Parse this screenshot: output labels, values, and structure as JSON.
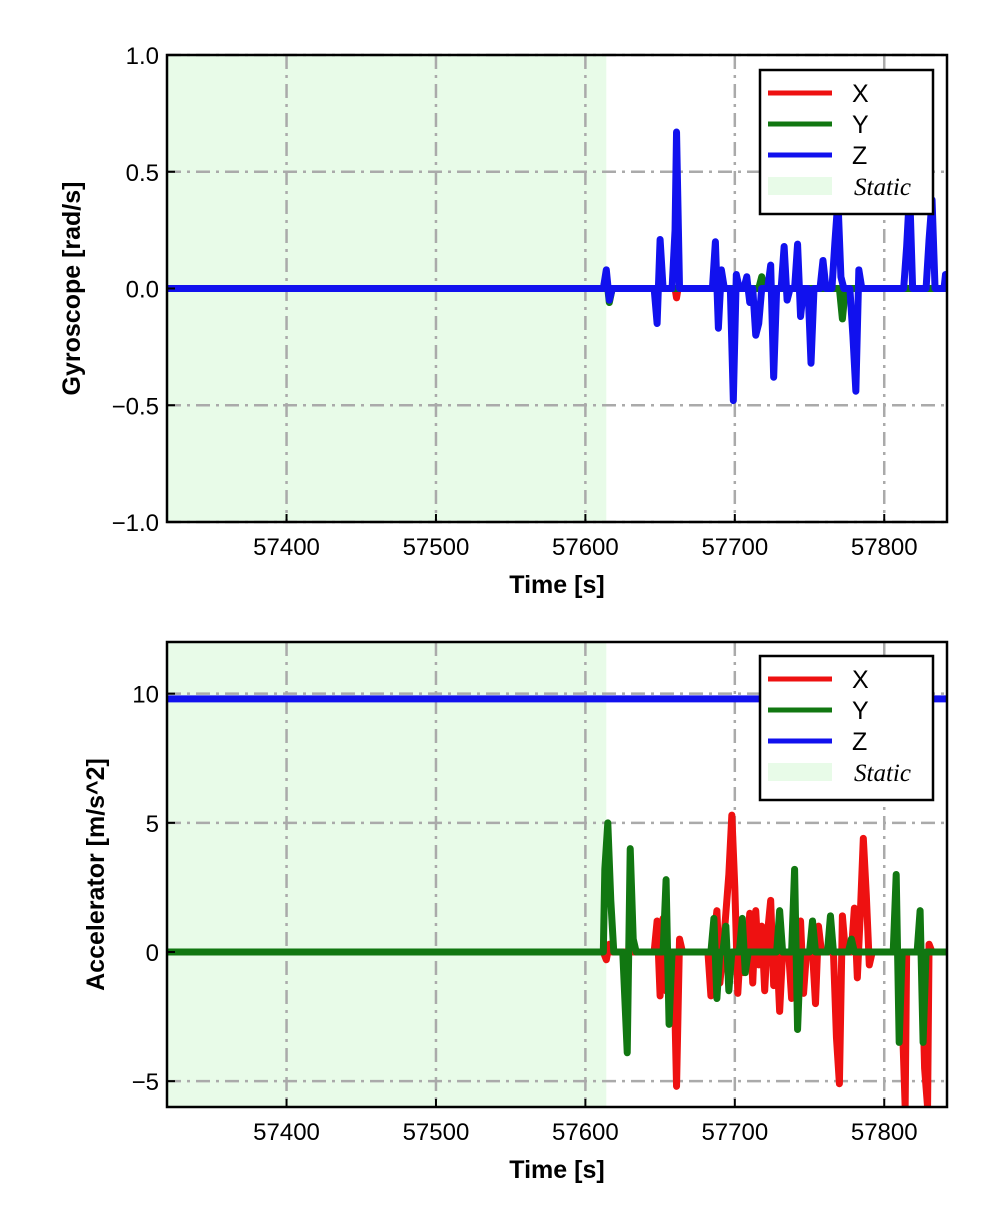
{
  "chart_data": [
    {
      "type": "line",
      "xlabel": "Time [s]",
      "ylabel": "Gyroscope [rad/s]",
      "xlim": [
        57320,
        57842
      ],
      "ylim": [
        -1.0,
        1.0
      ],
      "x_ticks": [
        57400,
        57500,
        57600,
        57700,
        57800
      ],
      "x_tick_labels": [
        "57400",
        "57500",
        "57600",
        "57700",
        "57800"
      ],
      "y_ticks": [
        -1.0,
        -0.5,
        0.0,
        0.5,
        1.0
      ],
      "y_tick_labels": [
        "−1.0",
        "−0.5",
        "0.0",
        "0.5",
        "1.0"
      ],
      "grid": true,
      "legend_position": "top-right",
      "static_region": {
        "label": "Static",
        "x_start": 57320,
        "x_end": 57614,
        "color": "#e8fbe8"
      },
      "series": [
        {
          "name": "X",
          "color": "#ee1111",
          "points": [
            [
              57320,
              0.0
            ],
            [
              57612,
              0.0
            ],
            [
              57614,
              0.05
            ],
            [
              57616,
              -0.04
            ],
            [
              57618,
              0.0
            ],
            [
              57660,
              0.0
            ],
            [
              57661,
              -0.04
            ],
            [
              57662,
              0.0
            ],
            [
              57842,
              0.0
            ]
          ]
        },
        {
          "name": "Y",
          "color": "#117711",
          "points": [
            [
              57320,
              0.0
            ],
            [
              57612,
              0.0
            ],
            [
              57614,
              0.06
            ],
            [
              57616,
              -0.06
            ],
            [
              57618,
              0.0
            ],
            [
              57716,
              0.0
            ],
            [
              57718,
              0.05
            ],
            [
              57720,
              0.0
            ],
            [
              57770,
              0.0
            ],
            [
              57772,
              -0.13
            ],
            [
              57774,
              0.0
            ],
            [
              57842,
              0.0
            ]
          ]
        },
        {
          "name": "Z",
          "color": "#1111ee",
          "points": [
            [
              57320,
              0.0
            ],
            [
              57612,
              0.0
            ],
            [
              57614,
              0.08
            ],
            [
              57616,
              -0.05
            ],
            [
              57618,
              0.0
            ],
            [
              57646,
              0.0
            ],
            [
              57648,
              -0.15
            ],
            [
              57650,
              0.21
            ],
            [
              57652,
              0.0
            ],
            [
              57658,
              0.0
            ],
            [
              57660,
              0.25
            ],
            [
              57661,
              0.67
            ],
            [
              57663,
              0.0
            ],
            [
              57685,
              0.0
            ],
            [
              57687,
              0.2
            ],
            [
              57689,
              -0.17
            ],
            [
              57691,
              0.08
            ],
            [
              57693,
              0.0
            ],
            [
              57697,
              0.0
            ],
            [
              57699,
              -0.48
            ],
            [
              57701,
              0.06
            ],
            [
              57703,
              0.0
            ],
            [
              57706,
              0.0
            ],
            [
              57708,
              0.05
            ],
            [
              57710,
              -0.06
            ],
            [
              57712,
              0.0
            ],
            [
              57714,
              -0.2
            ],
            [
              57716,
              -0.15
            ],
            [
              57718,
              0.0
            ],
            [
              57722,
              0.0
            ],
            [
              57724,
              0.1
            ],
            [
              57726,
              -0.38
            ],
            [
              57728,
              0.0
            ],
            [
              57731,
              0.0
            ],
            [
              57733,
              0.18
            ],
            [
              57735,
              -0.05
            ],
            [
              57737,
              0.0
            ],
            [
              57740,
              0.0
            ],
            [
              57742,
              0.19
            ],
            [
              57744,
              -0.12
            ],
            [
              57746,
              0.0
            ],
            [
              57749,
              0.0
            ],
            [
              57751,
              -0.32
            ],
            [
              57753,
              0.0
            ],
            [
              57757,
              0.0
            ],
            [
              57759,
              0.12
            ],
            [
              57761,
              0.0
            ],
            [
              57765,
              0.0
            ],
            [
              57767,
              0.2
            ],
            [
              57769,
              0.38
            ],
            [
              57771,
              0.05
            ],
            [
              57773,
              0.0
            ],
            [
              57777,
              0.0
            ],
            [
              57779,
              -0.2
            ],
            [
              57781,
              -0.44
            ],
            [
              57783,
              0.08
            ],
            [
              57785,
              0.0
            ],
            [
              57813,
              0.0
            ],
            [
              57815,
              0.18
            ],
            [
              57817,
              0.42
            ],
            [
              57819,
              0.0
            ],
            [
              57828,
              0.0
            ],
            [
              57830,
              0.21
            ],
            [
              57832,
              0.38
            ],
            [
              57834,
              0.0
            ],
            [
              57840,
              0.0
            ],
            [
              57841,
              0.06
            ],
            [
              57842,
              0.0
            ]
          ]
        }
      ]
    },
    {
      "type": "line",
      "xlabel": "Time [s]",
      "ylabel": "Accelerator [m/s^2]",
      "xlim": [
        57320,
        57842
      ],
      "ylim": [
        -6.0,
        12.0
      ],
      "x_ticks": [
        57400,
        57500,
        57600,
        57700,
        57800
      ],
      "x_tick_labels": [
        "57400",
        "57500",
        "57600",
        "57700",
        "57800"
      ],
      "y_ticks": [
        -5,
        0,
        5,
        10
      ],
      "y_tick_labels": [
        "−5",
        "0",
        "5",
        "10"
      ],
      "grid": true,
      "legend_position": "top-right",
      "static_region": {
        "label": "Static",
        "x_start": 57320,
        "x_end": 57614,
        "color": "#e8fbe8"
      },
      "series": [
        {
          "name": "X",
          "color": "#ee1111",
          "points": [
            [
              57320,
              0.0
            ],
            [
              57612,
              0.0
            ],
            [
              57614,
              -0.3
            ],
            [
              57616,
              0.3
            ],
            [
              57618,
              0.0
            ],
            [
              57646,
              0.0
            ],
            [
              57648,
              1.2
            ],
            [
              57650,
              -1.7
            ],
            [
              57652,
              1.3
            ],
            [
              57654,
              -1.5
            ],
            [
              57656,
              0.0
            ],
            [
              57659,
              0.0
            ],
            [
              57661,
              -5.2
            ],
            [
              57663,
              0.5
            ],
            [
              57665,
              0.0
            ],
            [
              57682,
              0.0
            ],
            [
              57684,
              -1.7
            ],
            [
              57686,
              0.5
            ],
            [
              57688,
              1.6
            ],
            [
              57690,
              -1.2
            ],
            [
              57692,
              0.0
            ],
            [
              57694,
              1.5
            ],
            [
              57696,
              3.0
            ],
            [
              57698,
              5.3
            ],
            [
              57700,
              2.5
            ],
            [
              57702,
              -1.6
            ],
            [
              57704,
              0.4
            ],
            [
              57706,
              -0.8
            ],
            [
              57708,
              0.0
            ],
            [
              57710,
              1.5
            ],
            [
              57712,
              -1.2
            ],
            [
              57714,
              1.6
            ],
            [
              57716,
              -0.5
            ],
            [
              57718,
              1.0
            ],
            [
              57720,
              -1.5
            ],
            [
              57722,
              0.8
            ],
            [
              57724,
              2.0
            ],
            [
              57726,
              -1.3
            ],
            [
              57728,
              0.2
            ],
            [
              57730,
              -2.3
            ],
            [
              57732,
              0.0
            ],
            [
              57736,
              0.0
            ],
            [
              57738,
              -1.8
            ],
            [
              57740,
              1.7
            ],
            [
              57742,
              -1.0
            ],
            [
              57744,
              1.2
            ],
            [
              57746,
              -1.6
            ],
            [
              57748,
              0.0
            ],
            [
              57752,
              0.0
            ],
            [
              57754,
              -2.0
            ],
            [
              57756,
              1.0
            ],
            [
              57758,
              0.0
            ],
            [
              57766,
              0.0
            ],
            [
              57768,
              -3.3
            ],
            [
              57770,
              -5.1
            ],
            [
              57772,
              1.4
            ],
            [
              57774,
              0.0
            ],
            [
              57778,
              0.0
            ],
            [
              57780,
              1.7
            ],
            [
              57782,
              -1.0
            ],
            [
              57784,
              1.5
            ],
            [
              57786,
              4.4
            ],
            [
              57788,
              2.2
            ],
            [
              57790,
              -0.5
            ],
            [
              57792,
              0.0
            ],
            [
              57810,
              0.0
            ],
            [
              57812,
              -2.5
            ],
            [
              57814,
              -6.0
            ],
            [
              57815,
              0.0
            ],
            [
              57825,
              0.0
            ],
            [
              57827,
              -4.5
            ],
            [
              57829,
              -6.0
            ],
            [
              57830,
              0.3
            ],
            [
              57832,
              0.0
            ],
            [
              57842,
              0.0
            ]
          ]
        },
        {
          "name": "Y",
          "color": "#117711",
          "points": [
            [
              57320,
              0.0
            ],
            [
              57612,
              0.0
            ],
            [
              57613,
              3.2
            ],
            [
              57615,
              5.0
            ],
            [
              57617,
              2.0
            ],
            [
              57619,
              0.0
            ],
            [
              57625,
              0.0
            ],
            [
              57628,
              -3.9
            ],
            [
              57630,
              4.0
            ],
            [
              57632,
              0.5
            ],
            [
              57634,
              0.0
            ],
            [
              57652,
              0.0
            ],
            [
              57654,
              2.8
            ],
            [
              57656,
              -2.8
            ],
            [
              57658,
              0.0
            ],
            [
              57684,
              0.0
            ],
            [
              57686,
              1.3
            ],
            [
              57688,
              -1.8
            ],
            [
              57690,
              0.0
            ],
            [
              57692,
              0.0
            ],
            [
              57694,
              1.0
            ],
            [
              57696,
              -1.5
            ],
            [
              57698,
              0.0
            ],
            [
              57703,
              0.0
            ],
            [
              57705,
              1.3
            ],
            [
              57707,
              -0.8
            ],
            [
              57709,
              0.0
            ],
            [
              57728,
              0.0
            ],
            [
              57730,
              1.6
            ],
            [
              57732,
              0.0
            ],
            [
              57738,
              0.0
            ],
            [
              57740,
              3.2
            ],
            [
              57742,
              -3.0
            ],
            [
              57744,
              0.0
            ],
            [
              57750,
              0.0
            ],
            [
              57752,
              1.2
            ],
            [
              57754,
              0.0
            ],
            [
              57762,
              0.0
            ],
            [
              57764,
              1.4
            ],
            [
              57766,
              0.0
            ],
            [
              57776,
              0.0
            ],
            [
              57778,
              0.5
            ],
            [
              57780,
              0.0
            ],
            [
              57806,
              0.0
            ],
            [
              57808,
              3.0
            ],
            [
              57810,
              -3.5
            ],
            [
              57812,
              0.0
            ],
            [
              57822,
              0.0
            ],
            [
              57824,
              1.6
            ],
            [
              57826,
              -3.5
            ],
            [
              57828,
              0.0
            ],
            [
              57842,
              0.0
            ]
          ]
        },
        {
          "name": "Z",
          "color": "#1111ee",
          "points": [
            [
              57320,
              9.8
            ],
            [
              57842,
              9.8
            ]
          ]
        }
      ]
    }
  ]
}
